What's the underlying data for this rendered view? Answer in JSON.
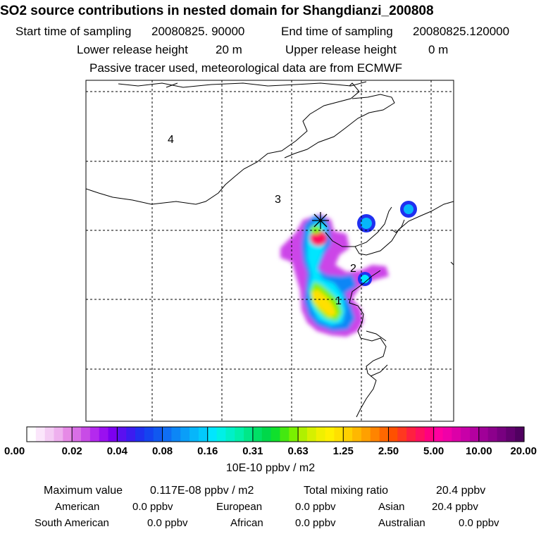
{
  "header": {
    "title": "SO2 source contributions in nested domain for Shangdianzi_200808",
    "start_label": "Start time of sampling",
    "start_value": "20080825. 90000",
    "end_label": "End time of sampling",
    "end_value": "20080825.120000",
    "lower_label": "Lower release height",
    "lower_value": "20 m",
    "upper_label": "Upper release height",
    "upper_value": "0 m",
    "note": "Passive tracer used, meteorological data are from ECMWF"
  },
  "chart_data": {
    "type": "heatmap",
    "region_labels": [
      "1",
      "2",
      "3",
      "4"
    ],
    "colorbar": {
      "ticks": [
        "0.00",
        "0.02",
        "0.04",
        "0.08",
        "0.16",
        "0.31",
        "0.63",
        "1.25",
        "2.50",
        "5.00",
        "10.00",
        "20.00"
      ],
      "unit": "10E-10 ppbv / m2",
      "colors": [
        [
          "#ffffff",
          "#fbe6fb",
          "#f4ccf4",
          "#eeb0ee",
          "#e68ae6"
        ],
        [
          "#d96fe6",
          "#c84ce6",
          "#b42aee",
          "#9a10f0",
          "#7c00f0"
        ],
        [
          "#5a10f0",
          "#3c1cf0",
          "#2030f0",
          "#1444f0",
          "#1058f0"
        ],
        [
          "#0f6ef4",
          "#0c86f6",
          "#0a9ef8",
          "#06b6fa",
          "#02cafc"
        ],
        [
          "#00e6ff",
          "#00f0e6",
          "#00f0c8",
          "#00f0aa",
          "#00e888"
        ],
        [
          "#00e066",
          "#00d84a",
          "#10e02c",
          "#44e810",
          "#7af000"
        ],
        [
          "#b0f000",
          "#d6f000",
          "#f0f000",
          "#fff000",
          "#ffe000"
        ],
        [
          "#ffd000",
          "#ffb800",
          "#ffa000",
          "#ff8400",
          "#ff6800"
        ],
        [
          "#ff5000",
          "#ff3820",
          "#ff2040",
          "#ff1060",
          "#ff0080"
        ],
        [
          "#ff00a0",
          "#f000a8",
          "#dc00a8",
          "#c800a8",
          "#b400a0"
        ],
        [
          "#a00098",
          "#8c008c",
          "#780080",
          "#640070",
          "#500060"
        ]
      ]
    },
    "max_value": 1.17e-09,
    "total_mixing_ratio": 20.4
  },
  "stats": {
    "max_label": "Maximum value",
    "max_value": "0.117E-08 ppbv / m2",
    "total_label": "Total mixing ratio",
    "total_value": "20.4 ppbv"
  },
  "regions": [
    {
      "name": "American",
      "value": "0.0 ppbv"
    },
    {
      "name": "European",
      "value": "0.0 ppbv"
    },
    {
      "name": "Asian",
      "value": "20.4 ppbv"
    },
    {
      "name": "South American",
      "value": "0.0 ppbv"
    },
    {
      "name": "African",
      "value": "0.0 ppbv"
    },
    {
      "name": "Australian",
      "value": "0.0 ppbv"
    }
  ]
}
